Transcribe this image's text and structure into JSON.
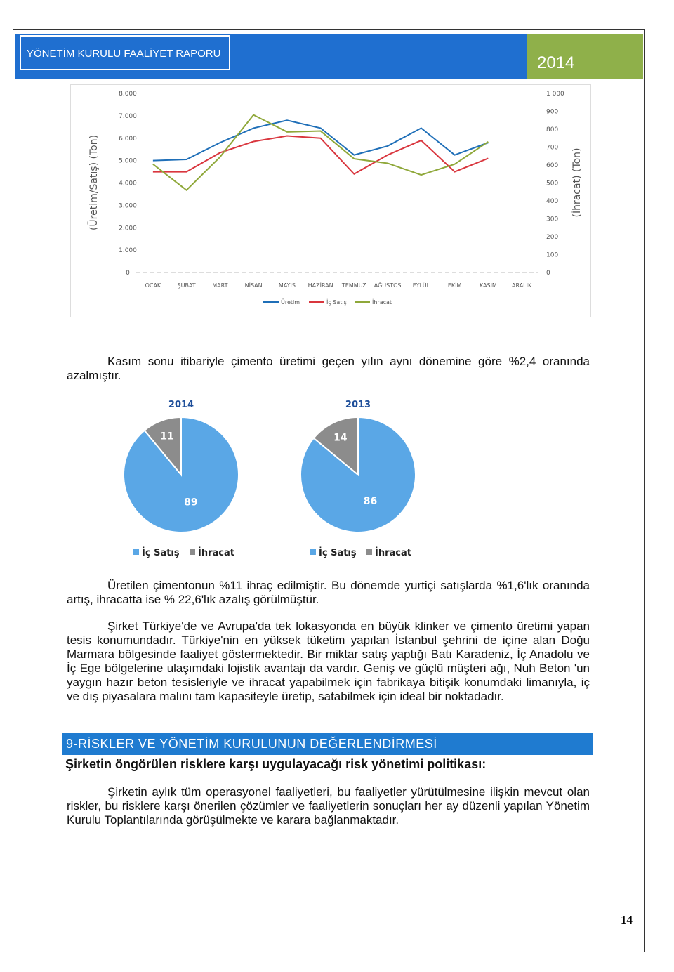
{
  "header": {
    "title": "YÖNETİM KURULU FAALİYET RAPORU",
    "year": "2014"
  },
  "chart_data": [
    {
      "type": "line",
      "categories": [
        "OCAK",
        "ŞUBAT",
        "MART",
        "NİSAN",
        "MAYIS",
        "HAZİRAN",
        "TEMMUZ",
        "AĞUSTOS",
        "EYLÜL",
        "EKİM",
        "KASIM",
        "ARALIK"
      ],
      "series": [
        {
          "name": "Üretim",
          "color": "#1f6fb8",
          "values": [
            5000,
            5050,
            5800,
            6450,
            6800,
            6450,
            5250,
            5650,
            6450,
            5250,
            5800,
            null
          ]
        },
        {
          "name": "İç Satış",
          "color": "#d9363e",
          "values": [
            4500,
            4500,
            5350,
            5850,
            6100,
            6000,
            4400,
            5250,
            5900,
            4500,
            5100,
            null
          ]
        },
        {
          "name": "İhracat",
          "color": "#8fa83a",
          "axis": "y2",
          "values": [
            605,
            460,
            645,
            880,
            785,
            790,
            635,
            610,
            545,
            605,
            730,
            null
          ]
        }
      ],
      "ylabel": "(Üretim/Satış) (Ton)",
      "y2label": "(İhracat) (Ton)",
      "ylim": [
        0,
        8000
      ],
      "yticks": [
        0,
        {
          "value": 1000,
          "label": "1.000"
        },
        {
          "value": 2000,
          "label": "2.000"
        },
        {
          "value": 3000,
          "label": "3.000"
        },
        {
          "value": 4000,
          "label": "4.000"
        },
        {
          "value": 5000,
          "label": "5.000"
        },
        {
          "value": 6000,
          "label": "6.000"
        },
        {
          "value": 7000,
          "label": "7.000"
        },
        {
          "value": 8000,
          "label": "8.000"
        }
      ],
      "y2lim": [
        0,
        1000
      ],
      "y2ticks": [
        0,
        100,
        200,
        300,
        400,
        500,
        600,
        700,
        800,
        900,
        {
          "value": 1000,
          "label": "1 000"
        }
      ],
      "grid": false,
      "legend": "bottom"
    },
    {
      "type": "pie",
      "title": "2014",
      "categories": [
        "İç Satış",
        "İhracat"
      ],
      "values": [
        89,
        11
      ],
      "colors": [
        "#5aa7e6",
        "#8c8c8c"
      ],
      "legend": "bottom"
    },
    {
      "type": "pie",
      "title": "2013",
      "categories": [
        "İç Satış",
        "İhracat"
      ],
      "values": [
        86,
        14
      ],
      "colors": [
        "#5aa7e6",
        "#8c8c8c"
      ],
      "legend": "bottom"
    }
  ],
  "paragraphs": [
    "Kasım sonu itibariyle çimento üretimi geçen yılın aynı dönemine göre %2,4 oranında azalmıştır.",
    "Üretilen çimentonun %11 ihraç edilmiştir. Bu dönemde yurtiçi satışlarda %1,6'lık oranında artış, ihracatta ise % 22,6'lık azalış görülmüştür.",
    "Şirket Türkiye'de ve Avrupa'da tek lokasyonda en büyük klinker ve çimento üretimi yapan tesis konumundadır. Türkiye'nin en yüksek tüketim yapılan İstanbul şehrini de içine alan Doğu Marmara bölgesinde faaliyet göstermektedir. Bir miktar satış yaptığı Batı Karadeniz, İç Anadolu ve İç Ege bölgelerine ulaşımdaki lojistik avantajı da vardır. Geniş ve güçlü müşteri ağı, Nuh Beton 'un yaygın hazır beton tesisleriyle ve ihracat yapabilmek için fabrikaya bitişik konumdaki limanıyla, iç ve dış piyasalara malını tam kapasiteyle üretip, satabilmek için ideal bir noktadadır."
  ],
  "section": {
    "title": "9-RİSKLER VE YÖNETİM KURULUNUN DEĞERLENDİRMESİ",
    "subtitle": "Şirketin öngörülen risklere karşı uygulayacağı risk yönetimi politikası:",
    "paragraph": "Şirketin aylık tüm operasyonel faaliyetleri, bu faaliyetler yürütülmesine ilişkin mevcut olan riskler, bu risklere karşı önerilen çözümler ve faaliyetlerin sonuçları her ay düzenli yapılan Yönetim Kurulu Toplantılarında görüşülmekte ve karara bağlanmaktadır."
  },
  "page_number": 14
}
